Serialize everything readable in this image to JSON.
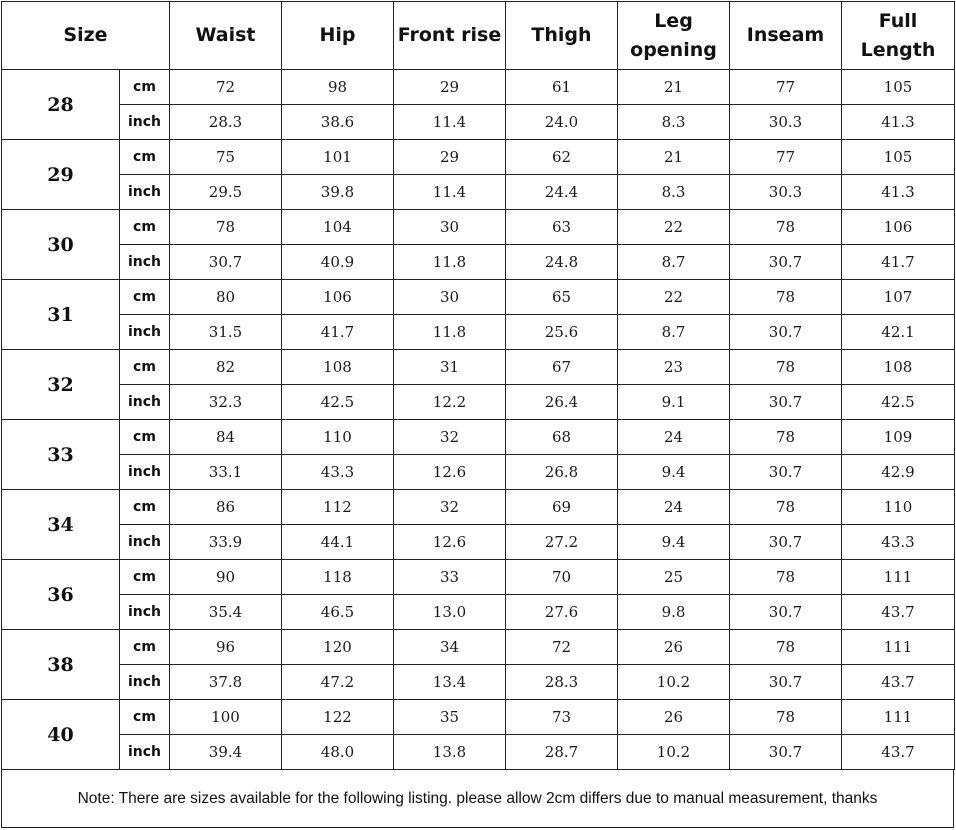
{
  "headers": {
    "size": "Size",
    "columns": [
      "Waist",
      "Hip",
      "Front rise",
      "Thigh",
      "Leg\nopening",
      "Inseam",
      "Full\nLength"
    ]
  },
  "units": {
    "cm": "cm",
    "inch": "inch"
  },
  "rows": [
    {
      "size": "28",
      "cm": [
        "72",
        "98",
        "29",
        "61",
        "21",
        "77",
        "105"
      ],
      "inch": [
        "28.3",
        "38.6",
        "11.4",
        "24.0",
        "8.3",
        "30.3",
        "41.3"
      ]
    },
    {
      "size": "29",
      "cm": [
        "75",
        "101",
        "29",
        "62",
        "21",
        "77",
        "105"
      ],
      "inch": [
        "29.5",
        "39.8",
        "11.4",
        "24.4",
        "8.3",
        "30.3",
        "41.3"
      ]
    },
    {
      "size": "30",
      "cm": [
        "78",
        "104",
        "30",
        "63",
        "22",
        "78",
        "106"
      ],
      "inch": [
        "30.7",
        "40.9",
        "11.8",
        "24.8",
        "8.7",
        "30.7",
        "41.7"
      ]
    },
    {
      "size": "31",
      "cm": [
        "80",
        "106",
        "30",
        "65",
        "22",
        "78",
        "107"
      ],
      "inch": [
        "31.5",
        "41.7",
        "11.8",
        "25.6",
        "8.7",
        "30.7",
        "42.1"
      ]
    },
    {
      "size": "32",
      "cm": [
        "82",
        "108",
        "31",
        "67",
        "23",
        "78",
        "108"
      ],
      "inch": [
        "32.3",
        "42.5",
        "12.2",
        "26.4",
        "9.1",
        "30.7",
        "42.5"
      ]
    },
    {
      "size": "33",
      "cm": [
        "84",
        "110",
        "32",
        "68",
        "24",
        "78",
        "109"
      ],
      "inch": [
        "33.1",
        "43.3",
        "12.6",
        "26.8",
        "9.4",
        "30.7",
        "42.9"
      ]
    },
    {
      "size": "34",
      "cm": [
        "86",
        "112",
        "32",
        "69",
        "24",
        "78",
        "110"
      ],
      "inch": [
        "33.9",
        "44.1",
        "12.6",
        "27.2",
        "9.4",
        "30.7",
        "43.3"
      ]
    },
    {
      "size": "36",
      "cm": [
        "90",
        "118",
        "33",
        "70",
        "25",
        "78",
        "111"
      ],
      "inch": [
        "35.4",
        "46.5",
        "13.0",
        "27.6",
        "9.8",
        "30.7",
        "43.7"
      ]
    },
    {
      "size": "38",
      "cm": [
        "96",
        "120",
        "34",
        "72",
        "26",
        "78",
        "111"
      ],
      "inch": [
        "37.8",
        "47.2",
        "13.4",
        "28.3",
        "10.2",
        "30.7",
        "43.7"
      ]
    },
    {
      "size": "40",
      "cm": [
        "100",
        "122",
        "35",
        "73",
        "26",
        "78",
        "111"
      ],
      "inch": [
        "39.4",
        "48.0",
        "13.8",
        "28.7",
        "10.2",
        "30.7",
        "43.7"
      ]
    }
  ],
  "note": "Note: There are sizes available for the following listing. please allow 2cm differs due to manual measurement, thanks"
}
